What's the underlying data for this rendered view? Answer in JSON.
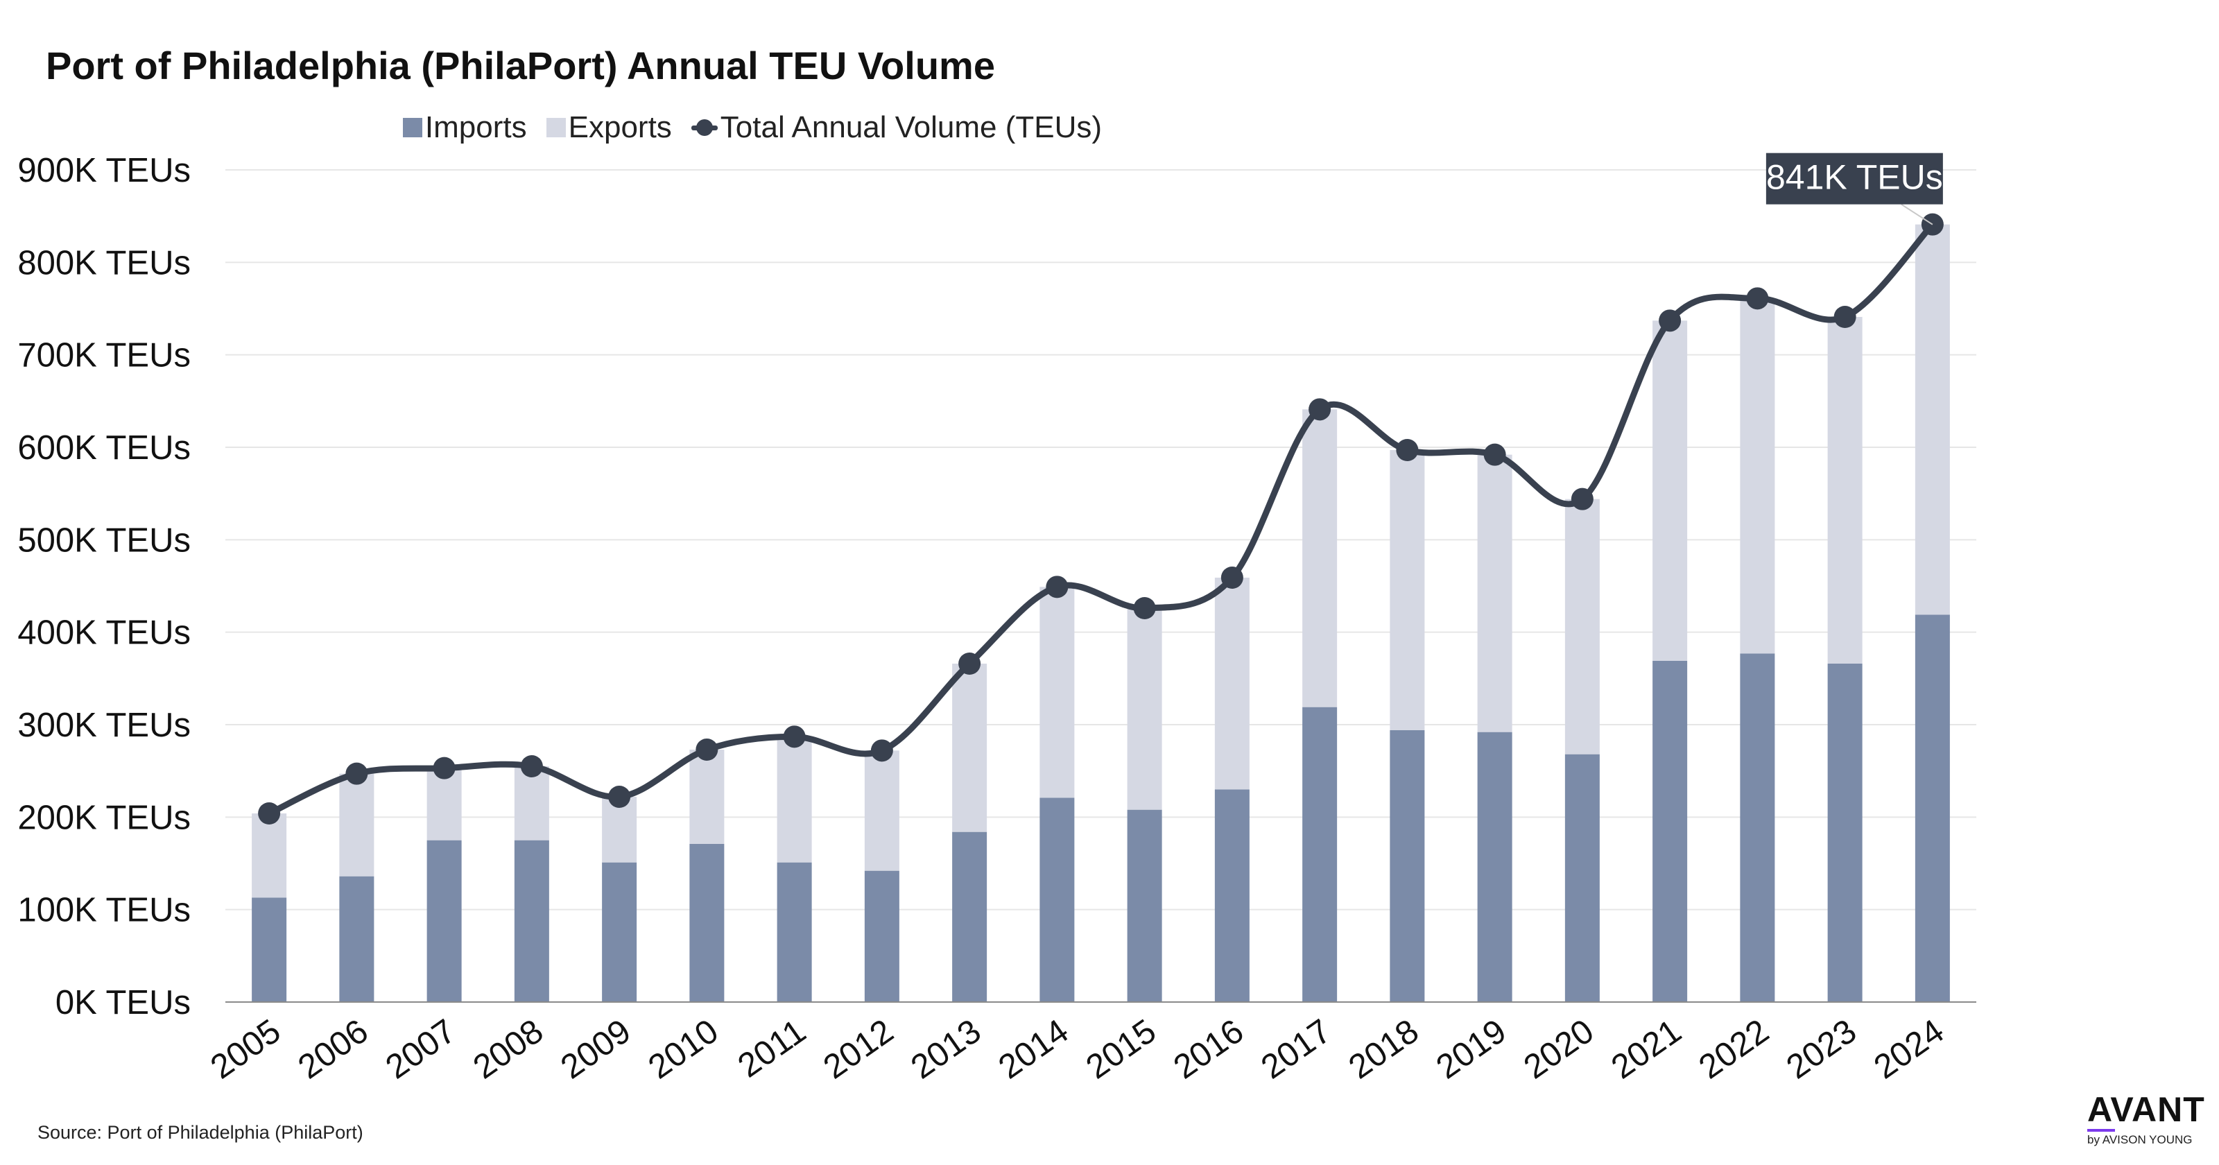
{
  "chart_data": {
    "type": "bar",
    "title": "Port of Philadelphia (PhilaPort) Annual TEU Volume",
    "categories": [
      "2005",
      "2006",
      "2007",
      "2008",
      "2009",
      "2010",
      "2011",
      "2012",
      "2013",
      "2014",
      "2015",
      "2016",
      "2017",
      "2018",
      "2019",
      "2020",
      "2021",
      "2022",
      "2023",
      "2024"
    ],
    "series": [
      {
        "name": "Imports",
        "kind": "stacked-bar",
        "color": "#7b8ba8",
        "values": [
          113,
          136,
          175,
          175,
          151,
          171,
          151,
          142,
          184,
          221,
          208,
          230,
          319,
          294,
          292,
          268,
          369,
          377,
          366,
          419
        ]
      },
      {
        "name": "Exports",
        "kind": "stacked-bar",
        "color": "#d5d8e3",
        "values": [
          91,
          111,
          78,
          80,
          71,
          102,
          136,
          130,
          182,
          228,
          218,
          229,
          322,
          303,
          300,
          276,
          368,
          384,
          375,
          422
        ]
      },
      {
        "name": "Total Annual Volume (TEUs)",
        "kind": "line",
        "color": "#39414f",
        "values": [
          204,
          247,
          253,
          255,
          222,
          273,
          287,
          272,
          366,
          449,
          426,
          459,
          641,
          597,
          592,
          544,
          737,
          761,
          741,
          841
        ]
      }
    ],
    "units": "thousand TEUs",
    "ylim": [
      0,
      900
    ],
    "yticks": [
      0,
      100,
      200,
      300,
      400,
      500,
      600,
      700,
      800,
      900
    ],
    "ytick_labels": [
      "0K TEUs",
      "100K TEUs",
      "200K TEUs",
      "300K TEUs",
      "400K TEUs",
      "500K TEUs",
      "600K TEUs",
      "700K TEUs",
      "800K TEUs",
      "900K TEUs"
    ],
    "xlabel": "",
    "ylabel": "",
    "grid": true,
    "legend_position": "top-center",
    "annotation": {
      "text": "841K TEUs",
      "category": "2024",
      "series": "Total Annual Volume (TEUs)"
    }
  },
  "source": "Source: Port of Philadelphia (PhilaPort)",
  "logo": {
    "word": "AVANT",
    "sub": "by AVISON YOUNG"
  }
}
